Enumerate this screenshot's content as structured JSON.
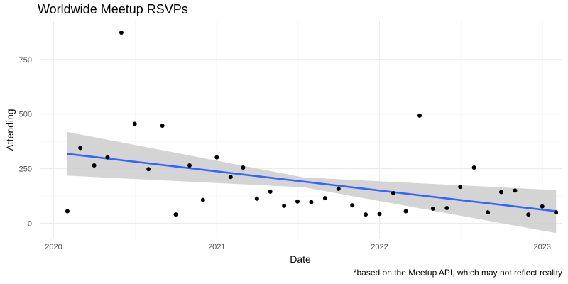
{
  "chart_data": {
    "type": "scatter",
    "title": "Worldwide Meetup RSVPs",
    "caption": "*based on the Meetup API, which may not reflect reality",
    "xlabel": "Date",
    "ylabel": "Attending",
    "xlim": [
      "2019-12-01",
      "2023-02-15"
    ],
    "ylim": [
      -70,
      925
    ],
    "x_ticks": [
      {
        "date": "2020-01-01",
        "label": "2020"
      },
      {
        "date": "2021-01-01",
        "label": "2021"
      },
      {
        "date": "2022-01-01",
        "label": "2022"
      },
      {
        "date": "2023-01-01",
        "label": "2023"
      }
    ],
    "y_ticks": [
      {
        "value": 0,
        "label": "0"
      },
      {
        "value": 250,
        "label": "250"
      },
      {
        "value": 500,
        "label": "500"
      },
      {
        "value": 750,
        "label": "750"
      }
    ],
    "grid": true,
    "series": [
      {
        "color": "#000000",
        "points": [
          {
            "x": "2020-02-01",
            "y": 55
          },
          {
            "x": "2020-03-01",
            "y": 345
          },
          {
            "x": "2020-04-01",
            "y": 265
          },
          {
            "x": "2020-05-01",
            "y": 302
          },
          {
            "x": "2020-06-01",
            "y": 873
          },
          {
            "x": "2020-07-01",
            "y": 455
          },
          {
            "x": "2020-08-01",
            "y": 248
          },
          {
            "x": "2020-09-01",
            "y": 447
          },
          {
            "x": "2020-10-01",
            "y": 40
          },
          {
            "x": "2020-11-01",
            "y": 265
          },
          {
            "x": "2020-12-01",
            "y": 107
          },
          {
            "x": "2021-01-01",
            "y": 302
          },
          {
            "x": "2021-02-01",
            "y": 212
          },
          {
            "x": "2021-03-01",
            "y": 255
          },
          {
            "x": "2021-04-01",
            "y": 113
          },
          {
            "x": "2021-05-01",
            "y": 145
          },
          {
            "x": "2021-06-01",
            "y": 80
          },
          {
            "x": "2021-07-01",
            "y": 100
          },
          {
            "x": "2021-08-01",
            "y": 97
          },
          {
            "x": "2021-09-01",
            "y": 115
          },
          {
            "x": "2021-10-01",
            "y": 158
          },
          {
            "x": "2021-11-01",
            "y": 82
          },
          {
            "x": "2021-12-01",
            "y": 40
          },
          {
            "x": "2022-01-01",
            "y": 43
          },
          {
            "x": "2022-02-01",
            "y": 138
          },
          {
            "x": "2022-03-01",
            "y": 55
          },
          {
            "x": "2022-04-01",
            "y": 493
          },
          {
            "x": "2022-05-01",
            "y": 67
          },
          {
            "x": "2022-06-01",
            "y": 70
          },
          {
            "x": "2022-07-01",
            "y": 167
          },
          {
            "x": "2022-08-01",
            "y": 255
          },
          {
            "x": "2022-09-01",
            "y": 50
          },
          {
            "x": "2022-10-01",
            "y": 143
          },
          {
            "x": "2022-11-01",
            "y": 150
          },
          {
            "x": "2022-12-01",
            "y": 40
          },
          {
            "x": "2023-01-01",
            "y": 77
          },
          {
            "x": "2023-02-01",
            "y": 50
          }
        ]
      }
    ],
    "trend": {
      "type": "linear",
      "color": "#3366FF",
      "band_color": "#CCCCCC",
      "start": {
        "x": "2020-02-01",
        "y": 318,
        "lower": 218,
        "upper": 418
      },
      "end": {
        "x": "2023-02-01",
        "y": 55,
        "lower": -45,
        "upper": 152
      },
      "band_mid": {
        "x": "2021-07-15",
        "lower": 165,
        "upper": 210
      }
    }
  }
}
